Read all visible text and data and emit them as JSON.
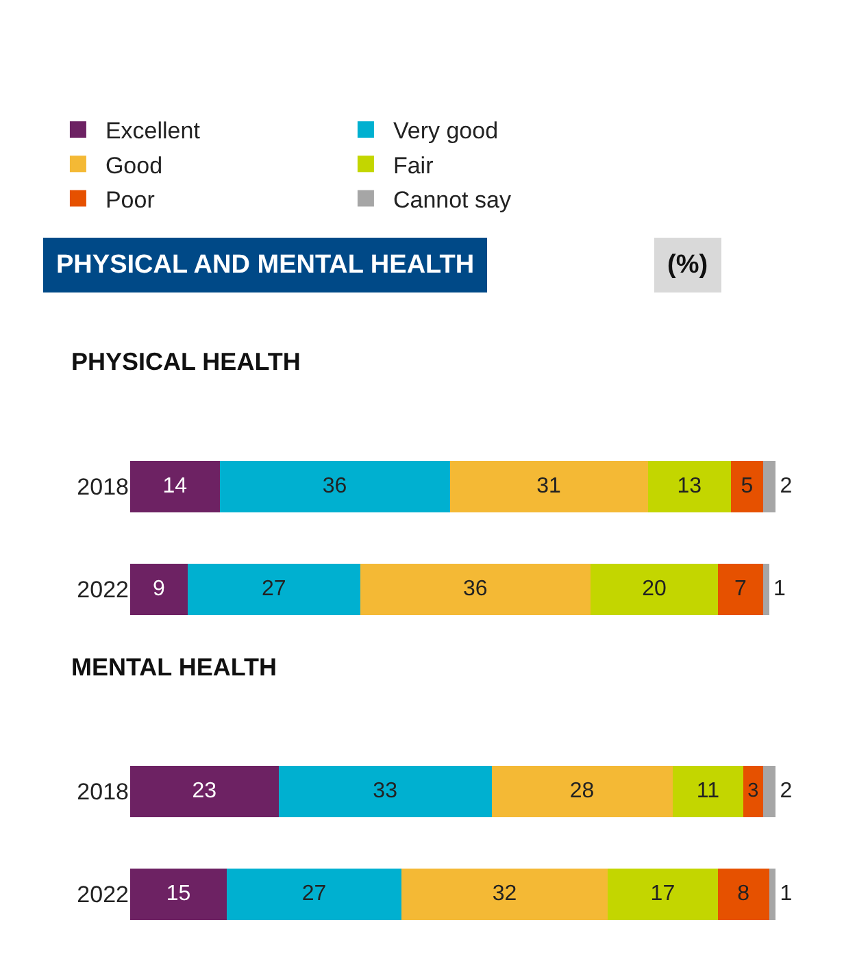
{
  "chart_data": [
    {
      "type": "bar",
      "orientation": "horizontal",
      "stacked": true,
      "data_labels": true,
      "legend": "top",
      "title": "PHYSICAL HEALTH",
      "annotations": [
        "PHYSICAL AND MENTAL HEALTH",
        "(%)"
      ],
      "categories": [
        "2018",
        "2022"
      ],
      "series": [
        {
          "name": "Excellent",
          "color": "#6d2263",
          "values": [
            14,
            9
          ]
        },
        {
          "name": "Very good",
          "color": "#00b0d0",
          "values": [
            36,
            27
          ]
        },
        {
          "name": "Good",
          "color": "#f4b935",
          "values": [
            31,
            36
          ]
        },
        {
          "name": "Fair",
          "color": "#c3d600",
          "values": [
            13,
            20
          ]
        },
        {
          "name": "Poor",
          "color": "#e65100",
          "values": [
            5,
            7
          ]
        },
        {
          "name": "Cannot say",
          "color": "#a6a6a6",
          "values": [
            2,
            1
          ]
        }
      ]
    },
    {
      "type": "bar",
      "orientation": "horizontal",
      "stacked": true,
      "data_labels": true,
      "title": "MENTAL HEALTH",
      "categories": [
        "2018",
        "2022"
      ],
      "series": [
        {
          "color": "#6d2263",
          "values": [
            23,
            15
          ]
        },
        {
          "color": "#00b0d0",
          "values": [
            33,
            27
          ]
        },
        {
          "color": "#f4b935",
          "values": [
            28,
            32
          ]
        },
        {
          "color": "#c3d600",
          "values": [
            11,
            17
          ]
        },
        {
          "color": "#e65100",
          "values": [
            3,
            8
          ]
        },
        {
          "color": "#a6a6a6",
          "values": [
            2,
            1
          ]
        }
      ]
    }
  ]
}
